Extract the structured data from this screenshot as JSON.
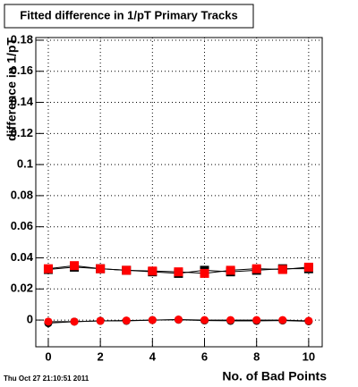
{
  "chart_data": {
    "type": "scatter",
    "title": "Fitted difference in 1/pT Primary Tracks",
    "x_label": "No. of Bad Points",
    "y_label": "difference in 1/pT",
    "timestamp": "Thu Oct 27 21:10:51 2011",
    "x": [
      0,
      1,
      2,
      3,
      4,
      5,
      6,
      7,
      8,
      9,
      10
    ],
    "series": [
      {
        "color": "#000000",
        "marker": "square",
        "values": [
          0.0325,
          0.034,
          0.033,
          0.032,
          0.031,
          0.03,
          0.032,
          0.031,
          0.032,
          0.033,
          0.033
        ]
      },
      {
        "color": "#000000",
        "marker": "circle",
        "values": [
          -0.002,
          -0.001,
          -0.0005,
          -0.0005,
          0,
          0.0002,
          -0.0003,
          -0.0005,
          -0.0005,
          -0.0003,
          -0.0008
        ]
      },
      {
        "color": "#ff0000",
        "marker": "square",
        "values": [
          0.033,
          0.035,
          0.033,
          0.032,
          0.0315,
          0.031,
          0.03,
          0.032,
          0.033,
          0.0325,
          0.034
        ]
      },
      {
        "color": "#ff0000",
        "marker": "circle",
        "values": [
          -0.001,
          -0.001,
          -0.0005,
          -0.0003,
          0,
          0.0003,
          0,
          0,
          0,
          0,
          -0.0005
        ]
      }
    ],
    "xlim": [
      -0.48,
      10.52
    ],
    "ylim": [
      -0.0172,
      0.1817
    ],
    "xticks": [
      0,
      2,
      4,
      6,
      8,
      10
    ],
    "yticks": [
      0,
      0.02,
      0.04,
      0.06,
      0.08,
      0.1,
      0.12,
      0.14,
      0.16,
      0.18
    ],
    "grid": true
  }
}
